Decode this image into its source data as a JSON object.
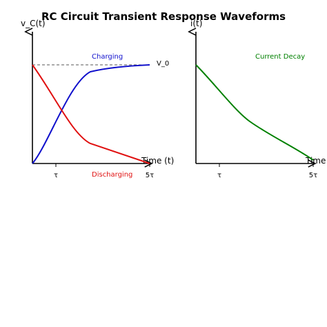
{
  "title": "RC Circuit Transient Response Waveforms",
  "colors": {
    "charging": "#1010cc",
    "discharging": "#e01010",
    "current": "#008000",
    "reference": "#555555",
    "axis": "#000000"
  },
  "left_plot": {
    "ylabel": "v_C(t)",
    "xlabel": "Time (t)",
    "ticks": [
      "τ",
      "5τ"
    ],
    "reference_label": "V_0",
    "charging_label": "Charging",
    "discharging_label": "Discharging"
  },
  "right_plot": {
    "ylabel": "i(t)",
    "xlabel": "Time",
    "ticks": [
      "τ",
      "5τ"
    ],
    "curve_label": "Current Decay"
  },
  "chart_data": [
    {
      "type": "line",
      "title": "RC Circuit Transient Response Waveforms",
      "xlabel": "Time (t)",
      "ylabel": "v_C(t)",
      "x_ticks": [
        "τ",
        "5τ"
      ],
      "x": [
        0,
        0.5,
        1,
        1.5,
        2,
        2.5,
        3,
        3.5,
        4,
        4.5,
        5
      ],
      "series": [
        {
          "name": "Charging",
          "values": [
            0,
            0.2,
            0.4,
            0.58,
            0.74,
            0.86,
            0.93,
            0.95,
            0.97,
            0.985,
            1.0
          ]
        },
        {
          "name": "Discharging",
          "values": [
            1.0,
            0.79,
            0.57,
            0.36,
            0.22,
            0.15,
            0.12,
            0.09,
            0.06,
            0.03,
            0.0
          ]
        }
      ],
      "reference_line": {
        "label": "V_0",
        "value": 1.0
      }
    },
    {
      "type": "line",
      "xlabel": "Time",
      "ylabel": "i(t)",
      "x_ticks": [
        "τ",
        "5τ"
      ],
      "x": [
        0,
        0.5,
        1,
        1.5,
        2,
        2.5,
        3,
        3.5,
        4,
        4.5,
        5
      ],
      "series": [
        {
          "name": "Current Decay",
          "values": [
            1.0,
            0.91,
            0.79,
            0.67,
            0.55,
            0.45,
            0.37,
            0.28,
            0.18,
            0.1,
            0.03
          ]
        }
      ]
    }
  ]
}
